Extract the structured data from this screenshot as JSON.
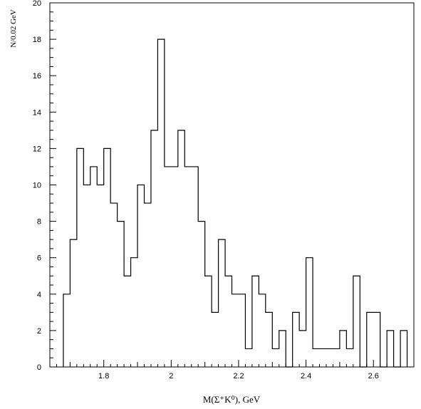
{
  "chart_data": {
    "type": "bar",
    "style": "step-histogram",
    "xlabel": "M(Σ⁺K⁰), GeV",
    "ylabel": "N/0.02 GeV",
    "bin_width": 0.02,
    "x_start": 1.68,
    "xlim": [
      1.64,
      2.72
    ],
    "ylim": [
      0,
      20
    ],
    "x_ticks": [
      "1.8",
      "2",
      "2.2",
      "2.4",
      "2.6"
    ],
    "y_ticks": [
      "0",
      "2",
      "4",
      "6",
      "8",
      "10",
      "12",
      "14",
      "16",
      "18",
      "20"
    ],
    "values": [
      4,
      7,
      12,
      10,
      11,
      10,
      12,
      9,
      8,
      5,
      6,
      10,
      9,
      13,
      18,
      11,
      11,
      13,
      11,
      11,
      8,
      5,
      3,
      7,
      5,
      4,
      4,
      1,
      5,
      4,
      3,
      1,
      2,
      0,
      3,
      2,
      6,
      1,
      1,
      1,
      1,
      2,
      1,
      5,
      0,
      3,
      3,
      0,
      2,
      0,
      2
    ],
    "grid": false,
    "line_color": "#000000"
  }
}
